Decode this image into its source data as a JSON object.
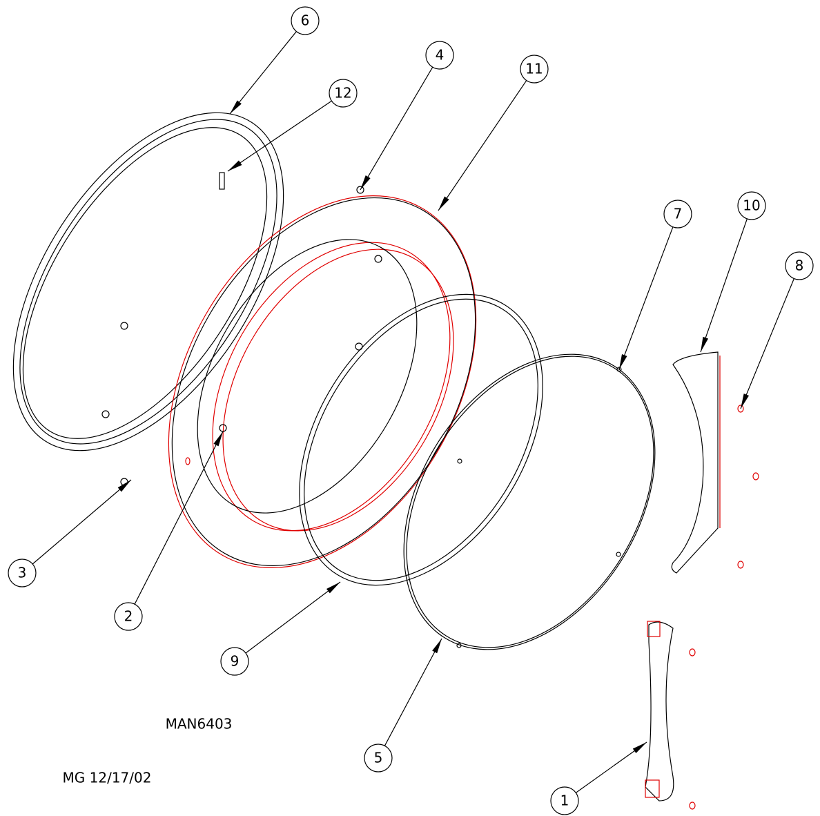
{
  "callouts": [
    "1",
    "2",
    "3",
    "4",
    "5",
    "6",
    "7",
    "8",
    "9",
    "10",
    "11",
    "12"
  ],
  "drawing_number": "MAN6403",
  "revision_note": "MG 12/17/02"
}
